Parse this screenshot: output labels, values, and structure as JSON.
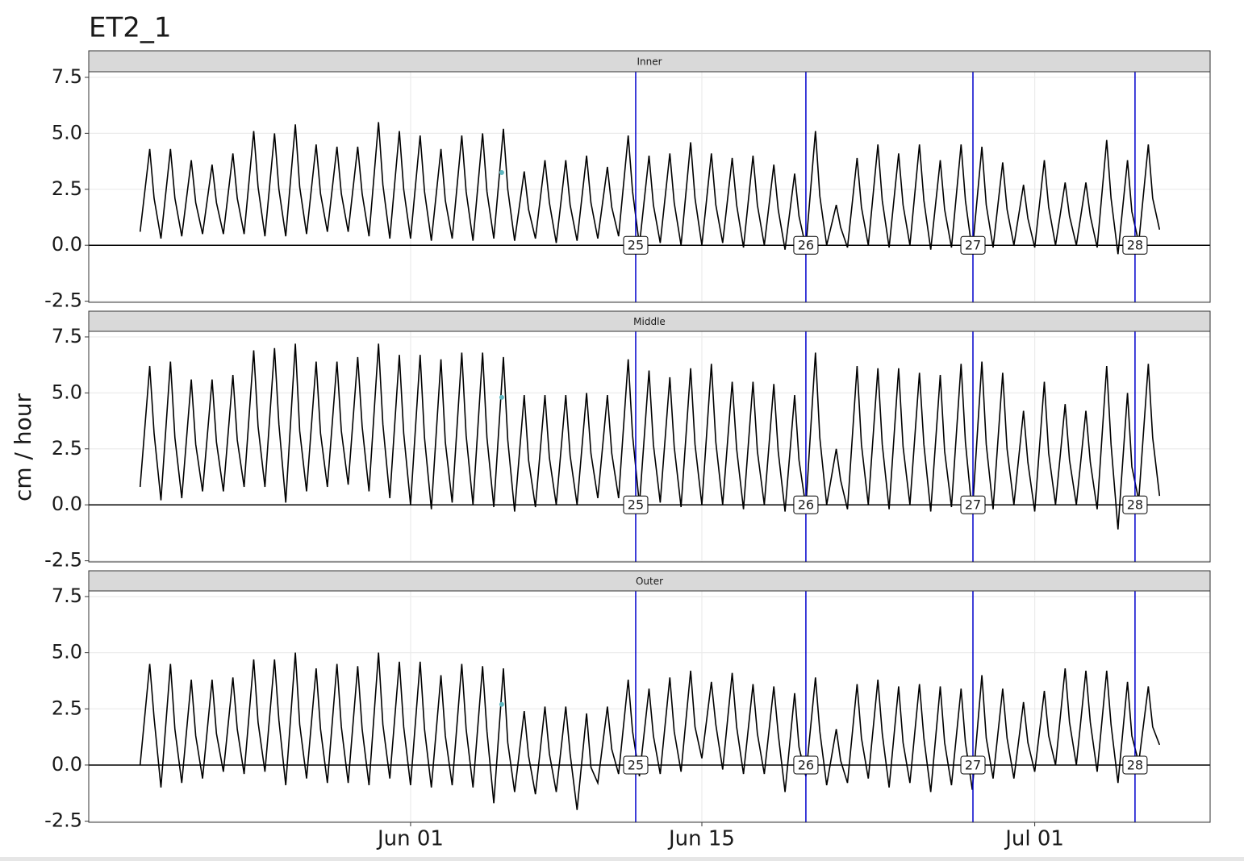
{
  "chart_data": {
    "type": "line",
    "title": "ET2_1",
    "y_label": "cm / hour",
    "xlim": [
      -15.47,
      38.43
    ],
    "xticks": [
      {
        "value": 0,
        "label": "Jun 01"
      },
      {
        "value": 14,
        "label": "Jun 15"
      },
      {
        "value": 30,
        "label": "Jul 01"
      }
    ],
    "ylim": [
      -2.55,
      7.75
    ],
    "yticks": [
      -2.5,
      {
        "value": 0,
        "label": "0.0"
      },
      2.5,
      {
        "value": 5,
        "label": "5.0"
      },
      7.5
    ],
    "grid": true,
    "color": "#000000",
    "reference_line": 0,
    "events": {
      "x": [
        10.82,
        19.0,
        27.03,
        34.82
      ],
      "labels": [
        25,
        26,
        27,
        28
      ],
      "color": "#0000cc"
    },
    "point_color": "#5fb8c0",
    "x": [
      -13,
      -12.54,
      -12.33,
      -12,
      -11.54,
      -11.33,
      -11,
      -10.54,
      -10.33,
      -10,
      -9.54,
      -9.33,
      -9,
      -8.54,
      -8.33,
      -8,
      -7.54,
      -7.33,
      -7,
      -6.54,
      -6.33,
      -6,
      -5.54,
      -5.33,
      -5,
      -4.54,
      -4.33,
      -4,
      -3.54,
      -3.33,
      -3,
      -2.54,
      -2.33,
      -2,
      -1.54,
      -1.33,
      -1,
      -0.54,
      -0.33,
      0,
      0.46,
      0.67,
      1,
      1.46,
      1.67,
      2,
      2.46,
      2.67,
      3,
      3.46,
      3.67,
      4,
      4.46,
      4.67,
      5,
      5.46,
      5.67,
      6,
      6.46,
      6.67,
      7,
      7.46,
      7.67,
      8,
      8.46,
      8.67,
      9,
      9.46,
      9.67,
      10,
      10.46,
      10.67,
      11,
      11.46,
      11.67,
      12,
      12.46,
      12.67,
      13,
      13.46,
      13.67,
      14,
      14.46,
      14.67,
      15,
      15.46,
      15.67,
      16,
      16.46,
      16.67,
      17,
      17.46,
      17.67,
      18,
      18.46,
      18.67,
      19,
      19.46,
      19.67,
      20,
      20.46,
      20.67,
      21,
      21.46,
      21.67,
      22,
      22.46,
      22.67,
      23,
      23.46,
      23.67,
      24,
      24.46,
      24.67,
      25,
      25.46,
      25.67,
      26,
      26.46,
      26.67,
      27,
      27.46,
      27.67,
      28,
      28.46,
      28.67,
      29,
      29.46,
      29.67,
      30,
      30.46,
      30.67,
      31,
      31.46,
      31.67,
      32,
      32.46,
      32.67,
      33,
      33.46,
      33.67,
      34,
      34.46,
      34.67,
      35,
      35.46,
      35.67,
      36
    ],
    "facets": [
      {
        "label": "Inner",
        "point": {
          "x": 4.38,
          "value": 3.25
        },
        "values": [
          0.6,
          4.3,
          2.1,
          0.3,
          4.3,
          2.1,
          0.4,
          3.8,
          1.9,
          0.5,
          3.6,
          1.9,
          0.5,
          4.1,
          2.1,
          0.5,
          5.1,
          2.6,
          0.4,
          5.0,
          2.5,
          0.4,
          5.4,
          2.6,
          0.5,
          4.5,
          2.3,
          0.6,
          4.4,
          2.3,
          0.6,
          4.4,
          2.3,
          0.4,
          5.5,
          2.7,
          0.3,
          5.1,
          2.5,
          0.3,
          4.9,
          2.4,
          0.2,
          4.3,
          2.0,
          0.3,
          4.9,
          2.4,
          0.2,
          5.0,
          2.4,
          0.3,
          5.2,
          2.5,
          0.2,
          3.3,
          1.6,
          0.3,
          3.8,
          1.9,
          0.1,
          3.8,
          1.8,
          0.2,
          4.0,
          1.9,
          0.3,
          3.5,
          1.7,
          0.4,
          4.9,
          2.4,
          0.0,
          4.0,
          1.8,
          0.1,
          4.1,
          1.9,
          0.0,
          4.6,
          2.1,
          0.0,
          4.1,
          1.8,
          0.1,
          3.9,
          1.8,
          -0.1,
          4.0,
          1.8,
          0.0,
          3.6,
          1.6,
          -0.2,
          3.2,
          1.3,
          -0.1,
          5.1,
          2.2,
          0.0,
          1.8,
          0.8,
          -0.1,
          3.9,
          1.7,
          0.0,
          4.5,
          2.0,
          -0.1,
          4.1,
          1.8,
          0.0,
          4.5,
          2.0,
          -0.2,
          3.8,
          1.6,
          -0.1,
          4.5,
          2.0,
          -0.3,
          4.4,
          1.8,
          -0.1,
          3.7,
          1.6,
          0.0,
          2.7,
          1.2,
          -0.1,
          3.8,
          1.7,
          0.0,
          2.8,
          1.3,
          0.0,
          2.8,
          1.3,
          -0.1,
          4.7,
          2.1,
          -0.4,
          3.8,
          1.5,
          0.1,
          4.5,
          2.1,
          0.7
        ]
      },
      {
        "label": "Middle",
        "point": {
          "x": 4.38,
          "value": 4.8
        },
        "values": [
          0.8,
          6.2,
          3.2,
          0.2,
          6.4,
          3.0,
          0.3,
          5.6,
          2.7,
          0.6,
          5.6,
          2.8,
          0.6,
          5.8,
          2.9,
          0.8,
          6.9,
          3.5,
          0.8,
          7.0,
          3.6,
          0.1,
          7.2,
          3.3,
          0.6,
          6.4,
          3.2,
          0.8,
          6.4,
          3.3,
          0.9,
          6.6,
          3.5,
          0.6,
          7.2,
          3.6,
          0.3,
          6.7,
          3.2,
          0.0,
          6.7,
          3.0,
          -0.2,
          6.5,
          2.8,
          0.1,
          6.8,
          3.1,
          0.0,
          6.8,
          3.0,
          -0.1,
          6.6,
          2.9,
          -0.3,
          4.9,
          2.0,
          -0.1,
          4.9,
          2.1,
          0.0,
          4.9,
          2.2,
          0.0,
          5.0,
          2.3,
          0.3,
          4.9,
          2.3,
          0.3,
          6.5,
          3.1,
          0.0,
          6.0,
          2.7,
          0.1,
          5.7,
          2.6,
          -0.1,
          6.1,
          2.7,
          0.0,
          6.3,
          2.8,
          0.0,
          5.5,
          2.5,
          -0.2,
          5.5,
          2.4,
          0.0,
          5.4,
          2.4,
          -0.3,
          4.9,
          2.0,
          -0.1,
          6.8,
          3.0,
          0.0,
          2.5,
          1.1,
          -0.2,
          6.2,
          2.7,
          0.0,
          6.1,
          2.7,
          -0.2,
          6.1,
          2.6,
          0.0,
          5.9,
          2.7,
          -0.3,
          5.8,
          2.4,
          -0.1,
          6.3,
          2.8,
          -0.4,
          6.4,
          2.7,
          -0.2,
          5.9,
          2.5,
          0.0,
          4.2,
          1.9,
          -0.3,
          5.5,
          2.3,
          0.0,
          4.5,
          2.0,
          0.0,
          4.2,
          1.9,
          -0.2,
          6.2,
          2.7,
          -1.1,
          5.0,
          1.7,
          0.2,
          6.3,
          3.0,
          0.4
        ]
      },
      {
        "label": "Outer",
        "point": {
          "x": 4.38,
          "value": 2.7
        },
        "values": [
          0.0,
          4.5,
          2.1,
          -1.0,
          4.5,
          1.6,
          -0.8,
          3.8,
          1.3,
          -0.6,
          3.8,
          1.4,
          -0.3,
          3.9,
          1.6,
          -0.4,
          4.7,
          1.9,
          -0.3,
          4.7,
          2.0,
          -0.9,
          5.0,
          1.8,
          -0.6,
          4.3,
          1.6,
          -0.8,
          4.5,
          1.7,
          -0.8,
          4.4,
          1.6,
          -0.9,
          5.0,
          1.8,
          -0.6,
          4.6,
          1.7,
          -0.9,
          4.6,
          1.6,
          -1.0,
          4.0,
          1.3,
          -0.9,
          4.5,
          1.6,
          -1.0,
          4.4,
          1.5,
          -1.7,
          4.3,
          1.0,
          -1.2,
          2.4,
          0.4,
          -1.3,
          2.6,
          0.5,
          -1.2,
          2.6,
          0.5,
          -2.0,
          2.3,
          -0.1,
          -0.8,
          2.6,
          0.7,
          -0.4,
          3.8,
          1.5,
          -0.5,
          3.4,
          1.3,
          -0.4,
          3.9,
          1.5,
          -0.3,
          4.2,
          1.7,
          0.3,
          3.7,
          1.8,
          -0.2,
          4.1,
          1.7,
          -0.4,
          3.6,
          1.4,
          -0.4,
          3.5,
          1.4,
          -1.2,
          3.2,
          0.8,
          -0.5,
          3.9,
          1.5,
          -0.9,
          1.6,
          0.2,
          -0.8,
          3.6,
          1.2,
          -0.6,
          3.8,
          1.4,
          -1.0,
          3.5,
          1.0,
          -0.8,
          3.6,
          1.2,
          -1.2,
          3.5,
          1.0,
          -0.9,
          3.4,
          1.0,
          -1.1,
          4.0,
          1.2,
          -0.6,
          3.4,
          1.2,
          -0.6,
          2.8,
          1.0,
          -0.3,
          3.3,
          1.3,
          0.0,
          4.3,
          1.9,
          0.0,
          4.2,
          1.9,
          -0.3,
          4.2,
          1.8,
          -0.8,
          3.7,
          1.3,
          0.1,
          3.5,
          1.7,
          0.9
        ]
      }
    ]
  }
}
